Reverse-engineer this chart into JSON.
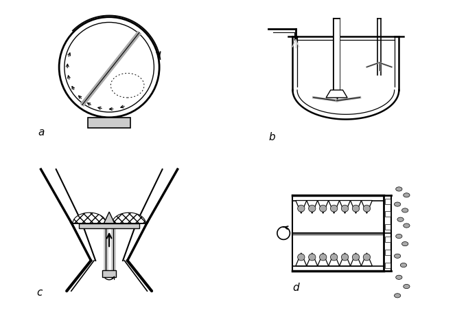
{
  "bg_color": "#ffffff",
  "line_color": "#000000",
  "gray_color": "#aaaaaa",
  "dark_gray": "#555555",
  "light_gray": "#cccccc",
  "label_a": "a",
  "label_b": "b",
  "label_c": "c",
  "label_d": "d",
  "label_fontsize": 11
}
